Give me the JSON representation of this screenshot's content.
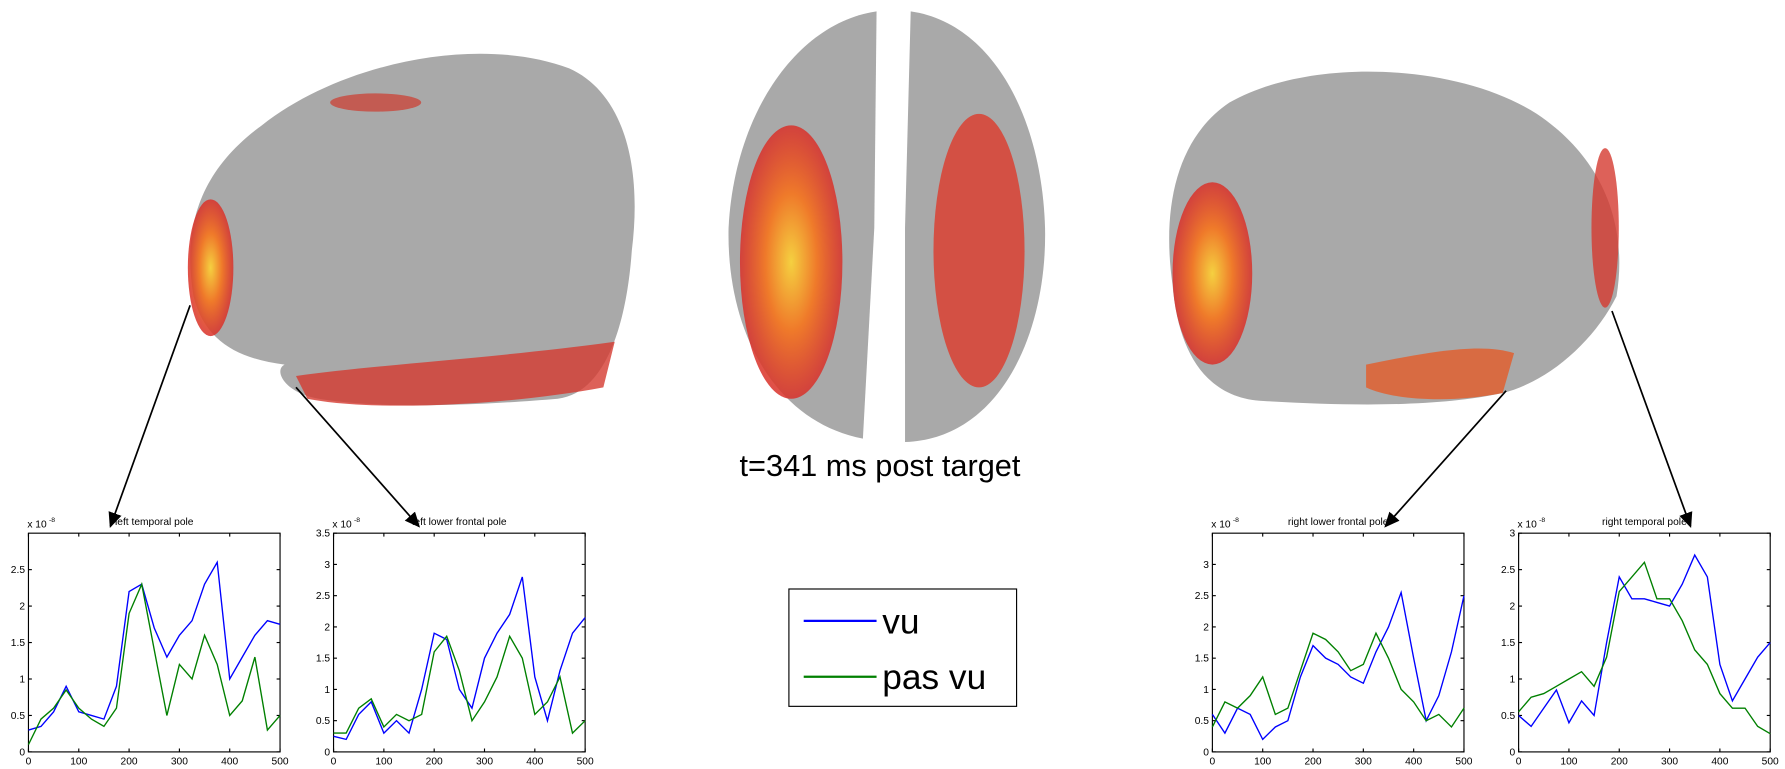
{
  "caption": "t=341 ms post target",
  "chart_data": [
    {
      "type": "line",
      "title": "left temporal pole",
      "yscale_label": "x 10",
      "yscale_exponent": "-8",
      "x": [
        0,
        25,
        50,
        75,
        100,
        125,
        150,
        175,
        200,
        225,
        250,
        275,
        300,
        325,
        350,
        375,
        400,
        425,
        450,
        475,
        500
      ],
      "series": [
        {
          "name": "vu",
          "color": "#0000ff",
          "values": [
            0.3,
            0.35,
            0.55,
            0.9,
            0.55,
            0.5,
            0.45,
            0.9,
            2.2,
            2.3,
            1.7,
            1.3,
            1.6,
            1.8,
            2.3,
            2.6,
            1.0,
            1.3,
            1.6,
            1.8,
            1.75
          ]
        },
        {
          "name": "pas vu",
          "color": "#008000",
          "values": [
            0.1,
            0.45,
            0.6,
            0.85,
            0.6,
            0.45,
            0.35,
            0.6,
            1.9,
            2.3,
            1.4,
            0.5,
            1.2,
            1.0,
            1.6,
            1.2,
            0.5,
            0.7,
            1.3,
            0.3,
            0.5
          ]
        }
      ],
      "xlim": [
        0,
        500
      ],
      "xticks": [
        0,
        100,
        200,
        300,
        400,
        500
      ],
      "ylim": [
        0,
        3
      ],
      "yticks": [
        0,
        0.5,
        1,
        1.5,
        2,
        2.5
      ]
    },
    {
      "type": "line",
      "title": "left lower frontal pole",
      "yscale_label": "x 10",
      "yscale_exponent": "-8",
      "x": [
        0,
        25,
        50,
        75,
        100,
        125,
        150,
        175,
        200,
        225,
        250,
        275,
        300,
        325,
        350,
        375,
        400,
        425,
        450,
        475,
        500
      ],
      "series": [
        {
          "name": "vu",
          "color": "#0000ff",
          "values": [
            0.25,
            0.2,
            0.6,
            0.8,
            0.3,
            0.5,
            0.3,
            1.0,
            1.9,
            1.8,
            1.0,
            0.7,
            1.5,
            1.9,
            2.2,
            2.8,
            1.2,
            0.5,
            1.3,
            1.9,
            2.15
          ]
        },
        {
          "name": "pas vu",
          "color": "#008000",
          "values": [
            0.3,
            0.3,
            0.7,
            0.85,
            0.4,
            0.6,
            0.5,
            0.6,
            1.6,
            1.85,
            1.3,
            0.5,
            0.8,
            1.2,
            1.85,
            1.5,
            0.6,
            0.8,
            1.2,
            0.3,
            0.5
          ]
        }
      ],
      "xlim": [
        0,
        500
      ],
      "xticks": [
        0,
        100,
        200,
        300,
        400,
        500
      ],
      "ylim": [
        0,
        3.5
      ],
      "yticks": [
        0,
        0.5,
        1,
        1.5,
        2,
        2.5,
        3,
        3.5
      ]
    },
    {
      "type": "line",
      "title": "right lower frontal pole",
      "yscale_label": "x 10",
      "yscale_exponent": "-8",
      "x": [
        0,
        25,
        50,
        75,
        100,
        125,
        150,
        175,
        200,
        225,
        250,
        275,
        300,
        325,
        350,
        375,
        400,
        425,
        450,
        475,
        500
      ],
      "series": [
        {
          "name": "vu",
          "color": "#0000ff",
          "values": [
            0.6,
            0.3,
            0.7,
            0.6,
            0.2,
            0.4,
            0.5,
            1.2,
            1.7,
            1.5,
            1.4,
            1.2,
            1.1,
            1.6,
            2.0,
            2.55,
            1.5,
            0.5,
            0.9,
            1.6,
            2.5
          ]
        },
        {
          "name": "pas vu",
          "color": "#008000",
          "values": [
            0.4,
            0.8,
            0.7,
            0.9,
            1.2,
            0.6,
            0.7,
            1.3,
            1.9,
            1.8,
            1.6,
            1.3,
            1.4,
            1.9,
            1.5,
            1.0,
            0.8,
            0.5,
            0.6,
            0.4,
            0.7
          ]
        }
      ],
      "xlim": [
        0,
        500
      ],
      "xticks": [
        0,
        100,
        200,
        300,
        400,
        500
      ],
      "ylim": [
        0,
        3.5
      ],
      "yticks": [
        0,
        0.5,
        1,
        1.5,
        2,
        2.5,
        3
      ]
    },
    {
      "type": "line",
      "title": "right temporal pole",
      "yscale_label": "x 10",
      "yscale_exponent": "-8",
      "x": [
        0,
        25,
        50,
        75,
        100,
        125,
        150,
        175,
        200,
        225,
        250,
        275,
        300,
        325,
        350,
        375,
        400,
        425,
        450,
        475,
        500
      ],
      "series": [
        {
          "name": "vu",
          "color": "#0000ff",
          "values": [
            0.5,
            0.35,
            0.6,
            0.85,
            0.4,
            0.7,
            0.5,
            1.5,
            2.4,
            2.1,
            2.1,
            2.05,
            2.0,
            2.3,
            2.7,
            2.4,
            1.2,
            0.7,
            1.0,
            1.3,
            1.5
          ]
        },
        {
          "name": "pas vu",
          "color": "#008000",
          "values": [
            0.55,
            0.75,
            0.8,
            0.9,
            1.0,
            1.1,
            0.9,
            1.3,
            2.2,
            2.4,
            2.6,
            2.1,
            2.1,
            1.8,
            1.4,
            1.2,
            0.8,
            0.6,
            0.6,
            0.35,
            0.25
          ]
        }
      ],
      "xlim": [
        0,
        500
      ],
      "xticks": [
        0,
        100,
        200,
        300,
        400,
        500
      ],
      "ylim": [
        0,
        3
      ],
      "yticks": [
        0,
        0.5,
        1,
        1.5,
        2,
        2.5,
        3
      ]
    }
  ]
}
